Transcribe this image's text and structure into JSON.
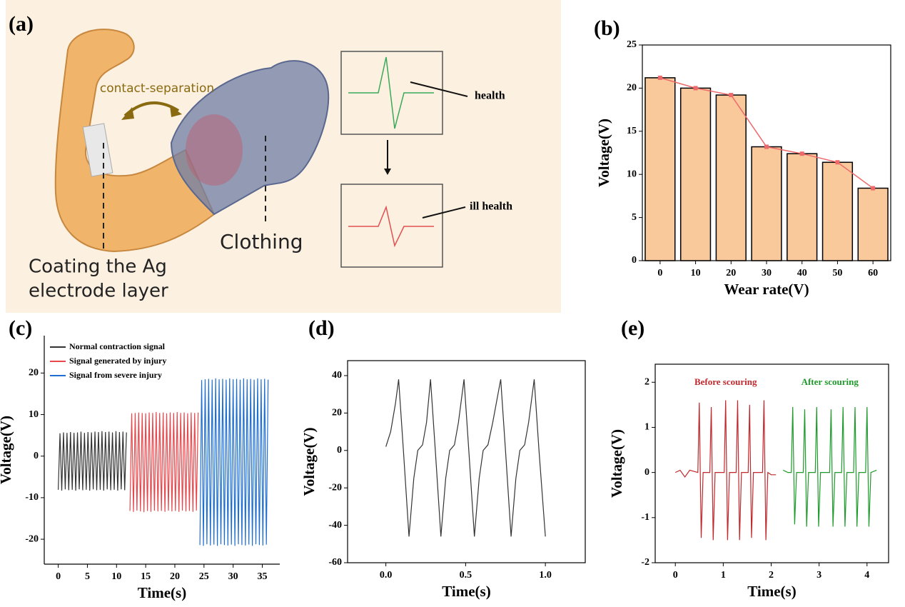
{
  "panel_labels": [
    "(a)",
    "(b)",
    "(c)",
    "(d)",
    "(e)"
  ],
  "illustration": {
    "motion": "contact-separation",
    "electrode": [
      "Coating the Ag",
      "electrode layer"
    ],
    "clothing": "Clothing",
    "good_signal": "health",
    "bad_signal": "ill health"
  },
  "chart_data": [
    {
      "type": "bar",
      "xlabel": "Wear rate(V)",
      "ylabel": "Voltage(V)",
      "categories": [
        "0",
        "10",
        "20",
        "30",
        "40",
        "50",
        "60"
      ],
      "values": [
        21.2,
        20.0,
        19.2,
        13.2,
        12.4,
        11.4,
        8.4
      ],
      "color": "#f9c89b",
      "line_color": "#ee6a6a",
      "show_line": true,
      "ylim": [
        0,
        25
      ],
      "yticks": [
        0,
        5,
        10,
        15,
        20,
        25
      ],
      "frame": "box"
    },
    {
      "type": "line",
      "xlabel": "Time(s)",
      "ylabel": "Voltage(V)",
      "legend": "upper left",
      "frame": "axes",
      "xlim": [
        -2.4,
        38
      ],
      "xticks": [
        0,
        5,
        10,
        15,
        20,
        25,
        30,
        35
      ],
      "ylim": [
        -26,
        29
      ],
      "yticks": [
        -20,
        -10,
        0,
        10,
        20
      ],
      "series": [
        {
          "name": "Normal contraction signal",
          "color": "#333333",
          "x": [
            0,
            0.3,
            0.6,
            0.9,
            1.2,
            1.5,
            1.8,
            2.1,
            2.4,
            2.7,
            3,
            3.3,
            3.6,
            3.9,
            4.2,
            4.5,
            4.8,
            5.1,
            5.4,
            5.7,
            6,
            6.3,
            6.6,
            6.9,
            7.2,
            7.5,
            7.8,
            8.1,
            8.4,
            8.7,
            9,
            9.3,
            9.6,
            9.9,
            10.2,
            10.5,
            10.8,
            11.1,
            11.4,
            11.7
          ],
          "values": [
            -8.1,
            5.5,
            -8.3,
            5.7,
            -8.0,
            5.6,
            -8.2,
            5.8,
            -8.1,
            5.6,
            -8.3,
            5.7,
            -8.0,
            5.9,
            -8.2,
            5.6,
            -8.1,
            5.8,
            -8.3,
            5.7,
            -8.0,
            5.9,
            -8.2,
            5.8,
            -8.1,
            6.0,
            -8.3,
            5.8,
            -8.0,
            5.9,
            -8.2,
            5.7,
            -8.1,
            6.0,
            -8.3,
            5.8,
            -8.0,
            5.9,
            -8.2,
            5.7
          ]
        },
        {
          "name": "Signal generated by injury",
          "color": "#e8474c",
          "x": [
            12.3,
            12.6,
            12.9,
            13.2,
            13.5,
            13.8,
            14.1,
            14.4,
            14.7,
            15,
            15.3,
            15.6,
            15.9,
            16.2,
            16.5,
            16.8,
            17.1,
            17.4,
            17.7,
            18,
            18.3,
            18.6,
            18.9,
            19.2,
            19.5,
            19.8,
            20.1,
            20.4,
            20.7,
            21,
            21.3,
            21.6,
            21.9,
            22.2,
            22.5,
            22.8,
            23.1,
            23.4,
            23.7,
            24
          ],
          "values": [
            -13.2,
            10.3,
            -13.4,
            10.4,
            -13.1,
            10.5,
            -13.3,
            10.4,
            -13.5,
            10.3,
            -13.2,
            10.5,
            -13.4,
            10.4,
            -13.1,
            10.6,
            -13.3,
            10.4,
            -13.2,
            10.5,
            -13.4,
            10.3,
            -13.1,
            10.5,
            -13.3,
            10.4,
            -13.2,
            10.6,
            -13.4,
            10.4,
            -13.1,
            10.5,
            -13.3,
            10.3,
            -13.2,
            10.5,
            -13.4,
            10.4,
            -13.1,
            10.5
          ]
        },
        {
          "name": "Signal from severe injury",
          "color": "#1f6fd1",
          "x": [
            24.3,
            24.6,
            24.9,
            25.2,
            25.5,
            25.8,
            26.1,
            26.4,
            26.7,
            27,
            27.3,
            27.6,
            27.9,
            28.2,
            28.5,
            28.8,
            29.1,
            29.4,
            29.7,
            30,
            30.3,
            30.6,
            30.9,
            31.2,
            31.5,
            31.8,
            32.1,
            32.4,
            32.7,
            33,
            33.3,
            33.6,
            33.9,
            34.2,
            34.5,
            34.8,
            35.1,
            35.4,
            35.7,
            36
          ],
          "values": [
            -21.4,
            18.3,
            -21.6,
            18.5,
            -21.2,
            18.6,
            -21.5,
            18.4,
            -21.3,
            18.7,
            -21.6,
            18.5,
            -21.2,
            18.6,
            -21.4,
            18.4,
            -21.5,
            18.7,
            -21.3,
            18.5,
            -21.6,
            18.6,
            -21.2,
            18.4,
            -21.4,
            18.7,
            -21.5,
            18.5,
            -21.3,
            18.6,
            -21.6,
            18.4,
            -21.2,
            18.7,
            -21.4,
            18.5,
            -21.5,
            18.6,
            -21.3,
            18.4
          ]
        }
      ]
    },
    {
      "type": "line",
      "xlabel": "Time(s)",
      "ylabel": "Voltage(V)",
      "frame": "box",
      "xlim": [
        -0.24,
        1.25
      ],
      "xticks": [
        {
          "value": 0,
          "label": "0.0"
        },
        0.5,
        {
          "value": 1,
          "label": "1.0"
        }
      ],
      "ylim": [
        -60,
        48
      ],
      "yticks": [
        -60,
        -40,
        -20,
        0,
        20,
        40
      ],
      "series": [
        {
          "color": "#333333",
          "x": [
            0,
            0.03,
            0.06,
            0.08,
            0.11,
            0.145,
            0.175,
            0.2,
            0.23,
            0.255,
            0.28,
            0.31,
            0.345,
            0.375,
            0.4,
            0.43,
            0.455,
            0.49,
            0.52,
            0.555,
            0.585,
            0.61,
            0.64,
            0.67,
            0.72,
            0.75,
            0.785,
            0.815,
            0.84,
            0.87,
            0.895,
            0.93,
            0.96,
            1.0
          ],
          "values": [
            2,
            10,
            25,
            38,
            0,
            -46,
            -15,
            0,
            3,
            15,
            38,
            0,
            -46,
            -15,
            0,
            3,
            15,
            38,
            0,
            -46,
            -15,
            0,
            3,
            15,
            38,
            0,
            -46,
            -15,
            0,
            3,
            15,
            38,
            0,
            -46
          ]
        }
      ]
    },
    {
      "type": "line",
      "xlabel": "Time(s)",
      "ylabel": "Voltage(V)",
      "frame": "box",
      "legend": "above series",
      "xlim": [
        -0.42,
        4.45
      ],
      "xticks": [
        0,
        1,
        2,
        3,
        4
      ],
      "ylim": [
        -2,
        2.4
      ],
      "yticks": [
        -2,
        -1,
        0,
        1,
        2
      ],
      "series": [
        {
          "name": "Before scouring",
          "color": "#c0282d",
          "x": [
            0,
            0.1,
            0.2,
            0.3,
            0.47,
            0.5,
            0.54,
            0.58,
            0.72,
            0.75,
            0.79,
            0.83,
            1.02,
            1.05,
            1.09,
            1.13,
            1.27,
            1.3,
            1.34,
            1.38,
            1.52,
            1.55,
            1.59,
            1.63,
            1.82,
            1.85,
            1.89,
            1.93,
            2.0,
            2.1
          ],
          "values": [
            0,
            0.05,
            -0.1,
            0.05,
            0,
            1.55,
            -1.45,
            0,
            0,
            1.45,
            -1.5,
            0,
            0,
            1.6,
            -1.5,
            0,
            0,
            1.6,
            -1.5,
            0,
            0,
            1.5,
            -1.45,
            0,
            0,
            1.6,
            -1.5,
            0,
            -0.05,
            -0.05
          ]
        },
        {
          "name": "After scouring",
          "color": "#1e9a2a",
          "x": [
            2.25,
            2.35,
            2.42,
            2.45,
            2.49,
            2.53,
            2.67,
            2.7,
            2.74,
            2.78,
            2.92,
            2.95,
            2.99,
            3.03,
            3.22,
            3.25,
            3.29,
            3.33,
            3.47,
            3.5,
            3.54,
            3.58,
            3.72,
            3.75,
            3.79,
            3.83,
            3.97,
            4.0,
            4.04,
            4.08,
            4.2
          ],
          "values": [
            0.05,
            0,
            0,
            1.45,
            -1.15,
            0,
            0,
            1.4,
            -1.2,
            0,
            0,
            1.45,
            -1.2,
            0,
            0,
            1.4,
            -1.2,
            0,
            0,
            1.45,
            -1.2,
            0,
            0,
            1.45,
            -1.2,
            0,
            0,
            1.45,
            -1.2,
            0,
            0.05
          ]
        }
      ]
    }
  ]
}
